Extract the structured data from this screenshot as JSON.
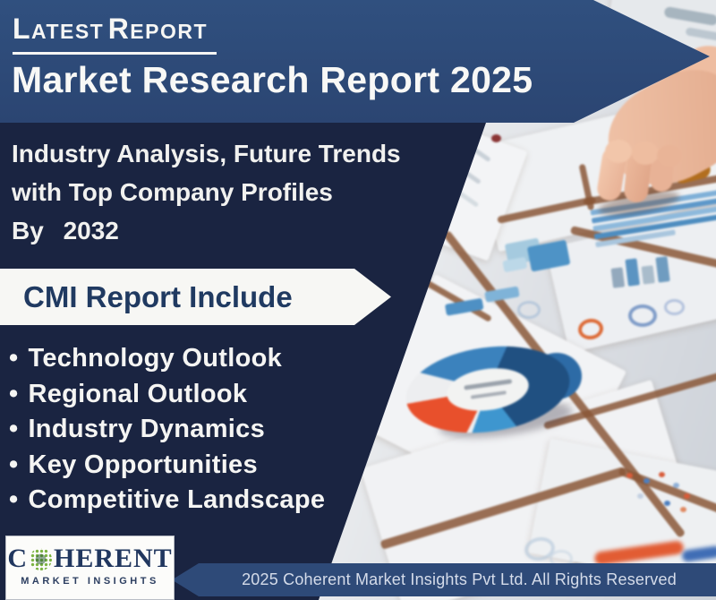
{
  "banner": {
    "tag_word1": "Latest",
    "tag_word2": "Report",
    "title": "Market Research Report 2025",
    "subtitle_line1": "Industry Analysis, Future Trends",
    "subtitle_line2": "with Top Company Profiles",
    "subtitle_line3": "By 2032"
  },
  "include_section": {
    "heading": "CMI Report Include",
    "bullet_char": "•",
    "items": [
      "Technology Outlook",
      "Regional Outlook",
      "Industry Dynamics",
      "Key Opportunities",
      "Competitive Landscape"
    ]
  },
  "logo": {
    "name_prefix": "C",
    "name_suffix": "HERENT",
    "tagline": "MARKET INSIGHTS"
  },
  "footer": {
    "text": "2025 Coherent Market Insights Pvt Ltd. All Rights Reserved"
  },
  "colors": {
    "band_blue": "#2e4a78",
    "dark_navy": "#1a2441",
    "text_white": "#f5f5f3",
    "heading_navy": "#203a61",
    "logo_green": "#7cb342",
    "donut_red": "#e8502c",
    "desk_brown": "#8a5737"
  }
}
